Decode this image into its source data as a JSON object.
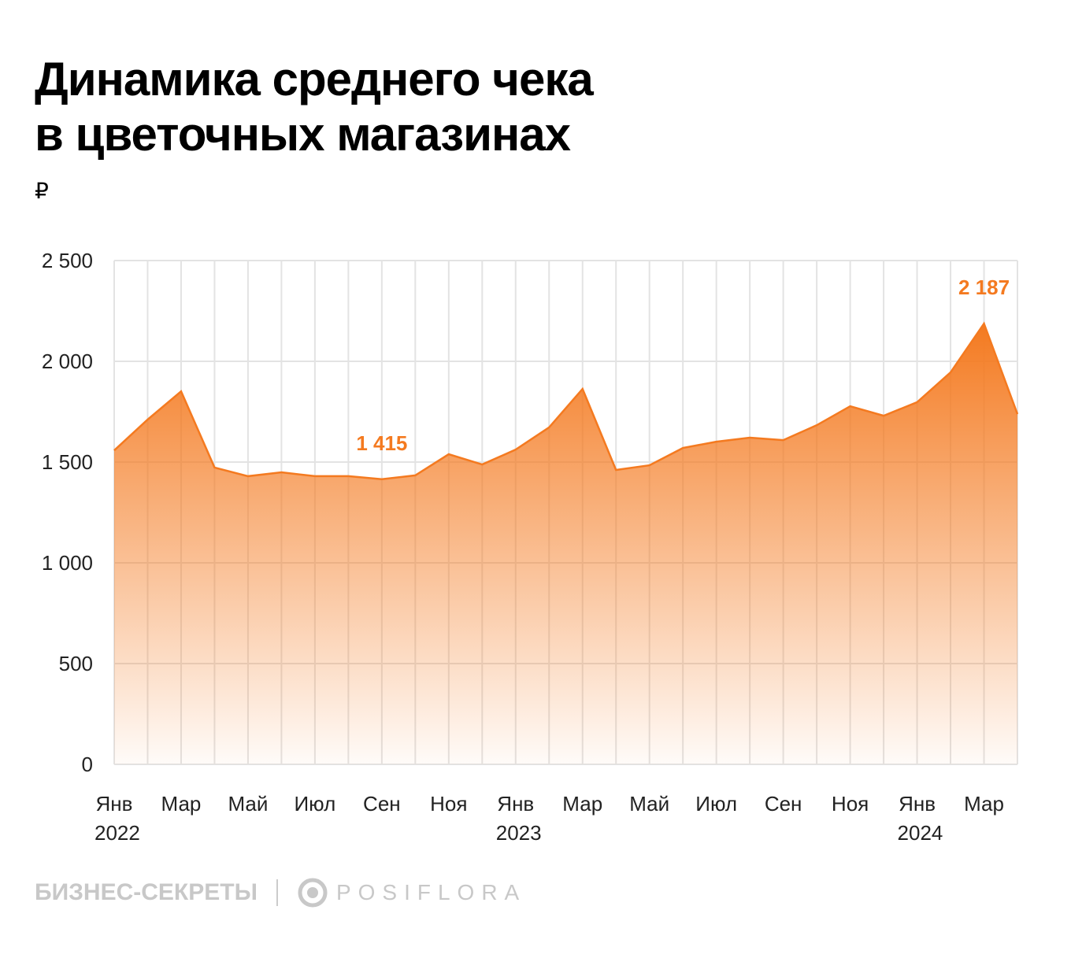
{
  "title_line1": "Динамика среднего чека",
  "title_line2": "в цветочных магазинах",
  "unit": "₽",
  "footer": {
    "brand1": "БИЗНЕС-СЕКРЕТЫ",
    "brand2": "POSIFLORA"
  },
  "colors": {
    "accent": "#f47a20",
    "grid": "#e3e3e3"
  },
  "chart_data": {
    "type": "area",
    "title": "Динамика среднего чека в цветочных магазинах",
    "ylabel": "₽",
    "ylim": [
      0,
      2500
    ],
    "yticks": [
      0,
      500,
      1000,
      1500,
      2000,
      2500
    ],
    "ytick_labels": [
      "0",
      "500",
      "1 000",
      "1 500",
      "2 000",
      "2 500"
    ],
    "grid": true,
    "x": [
      "2022-01",
      "2022-02",
      "2022-03",
      "2022-04",
      "2022-05",
      "2022-06",
      "2022-07",
      "2022-08",
      "2022-09",
      "2022-10",
      "2022-11",
      "2022-12",
      "2023-01",
      "2023-02",
      "2023-03",
      "2023-04",
      "2023-05",
      "2023-06",
      "2023-07",
      "2023-08",
      "2023-09",
      "2023-10",
      "2023-11",
      "2023-12",
      "2024-01",
      "2024-02",
      "2024-03",
      "2024-04"
    ],
    "xtick_labels": [
      {
        "month": "Янв",
        "year": "2022",
        "index": 0
      },
      {
        "month": "Мар",
        "index": 2
      },
      {
        "month": "Май",
        "index": 4
      },
      {
        "month": "Июл",
        "index": 6
      },
      {
        "month": "Сен",
        "index": 8
      },
      {
        "month": "Ноя",
        "index": 10
      },
      {
        "month": "Янв",
        "year": "2023",
        "index": 12
      },
      {
        "month": "Мар",
        "index": 14
      },
      {
        "month": "Май",
        "index": 16
      },
      {
        "month": "Июл",
        "index": 18
      },
      {
        "month": "Сен",
        "index": 20
      },
      {
        "month": "Ноя",
        "index": 22
      },
      {
        "month": "Янв",
        "year": "2024",
        "index": 24
      },
      {
        "month": "Мар",
        "index": 26
      }
    ],
    "values": [
      1558,
      1711,
      1851,
      1473,
      1430,
      1449,
      1430,
      1430,
      1415,
      1434,
      1539,
      1488,
      1562,
      1672,
      1863,
      1461,
      1484,
      1570,
      1601,
      1621,
      1609,
      1683,
      1777,
      1730,
      1797,
      1945,
      2187,
      1738
    ],
    "annotations": [
      {
        "index": 8,
        "text": "1 415"
      },
      {
        "index": 26,
        "text": "2 187"
      }
    ]
  }
}
